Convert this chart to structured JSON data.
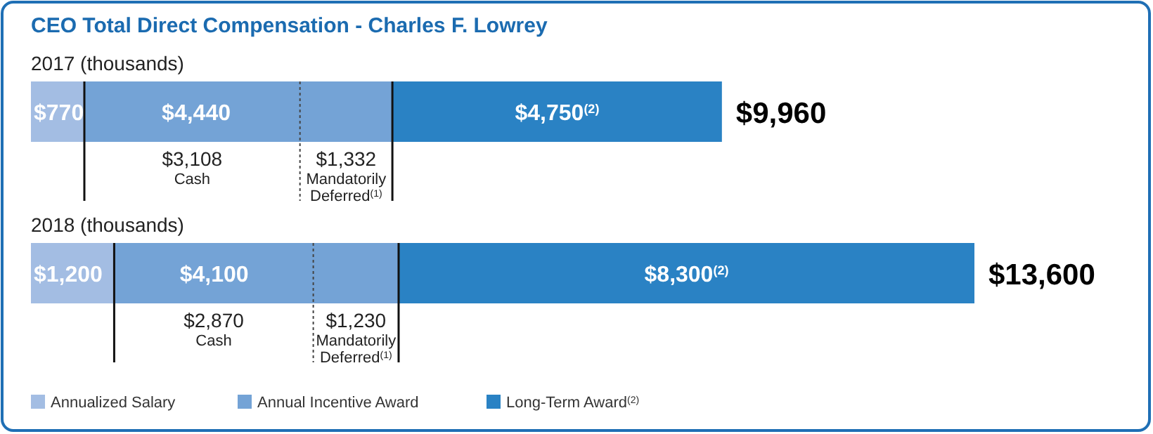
{
  "chart_data": {
    "type": "bar",
    "orientation": "horizontal",
    "stacked": true,
    "title": "CEO Total Direct Compensation - Charles F. Lowrey",
    "categories": [
      "2017 (thousands)",
      "2018 (thousands)"
    ],
    "series": [
      {
        "name": "Annualized Salary",
        "color": "#a3bde3",
        "values": [
          770,
          1200
        ],
        "value_labels": [
          "$770",
          "$1,200"
        ]
      },
      {
        "name": "Annual Incentive Award",
        "color": "#74a3d6",
        "values": [
          4440,
          4100
        ],
        "value_labels": [
          "$4,440",
          "$4,100"
        ]
      },
      {
        "name": "Long-Term Award$^{(2)}$",
        "color": "#2a82c4",
        "values": [
          4750,
          8300
        ],
        "value_labels": [
          "$4,750$^{(2)}$",
          "$8,300$^{(2)}$"
        ]
      }
    ],
    "totals": [
      "$9,960",
      "$13,600"
    ],
    "annotations": [
      "$3,108\nCash",
      "$1,332\nMandatorily\nDeferred$^{(1)}$",
      "$2,870\nCash",
      "$1,230\nMandatorily\nDeferred$^{(1)}$"
    ],
    "legend": "bottom left"
  }
}
